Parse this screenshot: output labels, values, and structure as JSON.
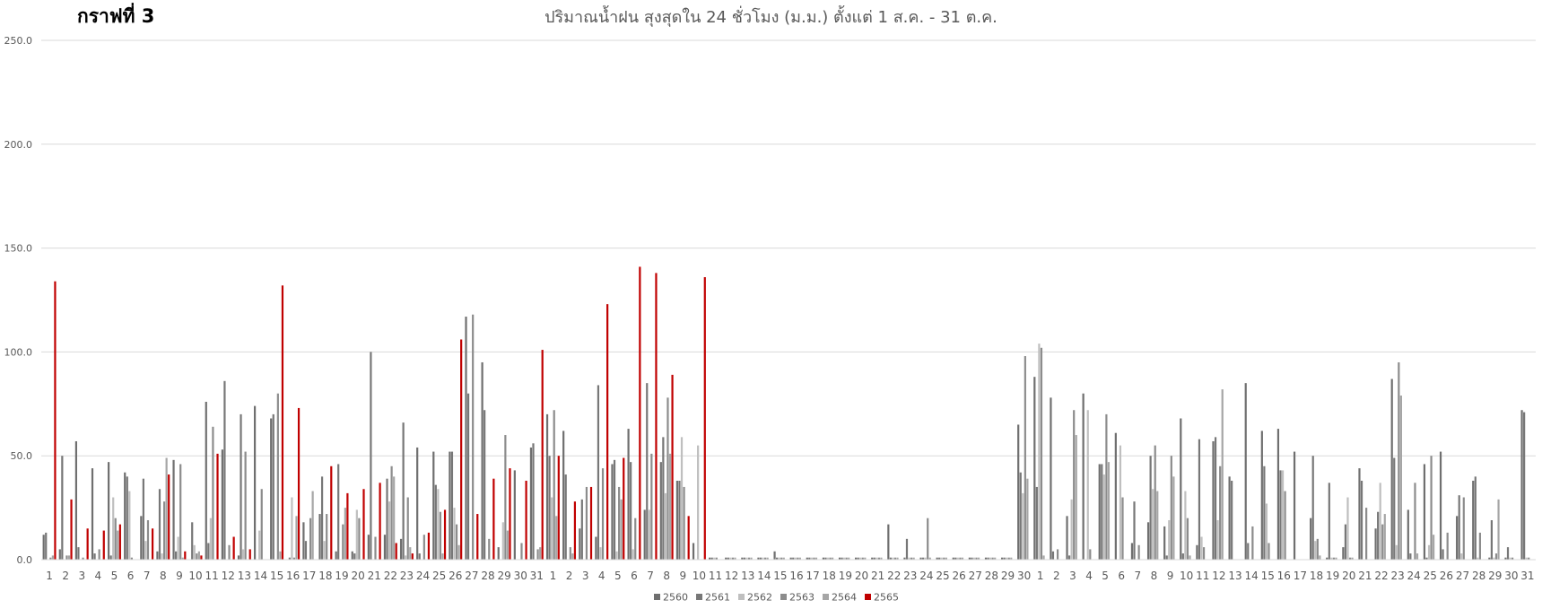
{
  "page": {
    "corner_title": "กราฟที่ 3"
  },
  "chart_data": {
    "type": "bar",
    "title": "ปริมาณน้ำฝน สุงสุดใน 24 ชั่วโมง (ม.ม.) ตั้งแต่ 1 ส.ค. - 31 ต.ค.",
    "xlabel": "",
    "ylabel": "",
    "ylim": [
      0,
      250
    ],
    "yticks": [
      "0.0",
      "50.0",
      "100.0",
      "150.0",
      "200.0",
      "250.0"
    ],
    "grid": true,
    "legend_position": "bottom",
    "categories": [
      "1",
      "2",
      "3",
      "4",
      "5",
      "6",
      "7",
      "8",
      "9",
      "10",
      "11",
      "12",
      "13",
      "14",
      "15",
      "16",
      "17",
      "18",
      "19",
      "20",
      "21",
      "22",
      "23",
      "24",
      "25",
      "26",
      "27",
      "28",
      "29",
      "30",
      "31",
      "1",
      "2",
      "3",
      "4",
      "5",
      "6",
      "7",
      "8",
      "9",
      "10",
      "11",
      "12",
      "13",
      "14",
      "15",
      "16",
      "17",
      "18",
      "19",
      "20",
      "21",
      "22",
      "23",
      "24",
      "25",
      "26",
      "27",
      "28",
      "29",
      "30",
      "1",
      "2",
      "3",
      "4",
      "5",
      "6",
      "7",
      "8",
      "9",
      "10",
      "11",
      "12",
      "13",
      "14",
      "15",
      "16",
      "17",
      "18",
      "19",
      "20",
      "21",
      "22",
      "23",
      "24",
      "25",
      "26",
      "27",
      "28",
      "29",
      "30",
      "31"
    ],
    "series": [
      {
        "name": "2560",
        "color": "#6f6f6f",
        "values": [
          12,
          5,
          57,
          44,
          47,
          42,
          21,
          4,
          48,
          0,
          76,
          53,
          2,
          74,
          68,
          0,
          18,
          22,
          4,
          4,
          12,
          12,
          10,
          54,
          52,
          52,
          117,
          95,
          6,
          43,
          54,
          70,
          62,
          15,
          11,
          46,
          63,
          24,
          47,
          38,
          8,
          1,
          1,
          1,
          1,
          4,
          1,
          1,
          1,
          1,
          1,
          1,
          17,
          1,
          1,
          1,
          1,
          1,
          1,
          1,
          65,
          88,
          78,
          21,
          80,
          46,
          61,
          8,
          18,
          16,
          68,
          7,
          57,
          40,
          85,
          62,
          63,
          52,
          20,
          1,
          6,
          44,
          15,
          87,
          24,
          46,
          52,
          21,
          38,
          1,
          1,
          72
        ]
      },
      {
        "name": "2561",
        "color": "#777777",
        "values": [
          13,
          50,
          6,
          3,
          2,
          40,
          39,
          34,
          4,
          18,
          8,
          86,
          70,
          0,
          70,
          1,
          9,
          40,
          46,
          3,
          100,
          39,
          66,
          3,
          36,
          52,
          80,
          72,
          0,
          0,
          56,
          50,
          41,
          29,
          84,
          48,
          47,
          85,
          59,
          38,
          0,
          1,
          1,
          1,
          1,
          1,
          1,
          1,
          1,
          1,
          1,
          1,
          1,
          10,
          1,
          1,
          1,
          1,
          1,
          1,
          42,
          35,
          4,
          2,
          0,
          46,
          0,
          28,
          50,
          2,
          3,
          58,
          59,
          38,
          8,
          45,
          43,
          0,
          50,
          37,
          17,
          38,
          23,
          49,
          3,
          1,
          5,
          31,
          40,
          19,
          6,
          71
        ]
      },
      {
        "name": "2562",
        "color": "#bfbfbf",
        "values": [
          0,
          0,
          0,
          0,
          30,
          33,
          9,
          3,
          11,
          7,
          20,
          0,
          5,
          14,
          0,
          30,
          0,
          9,
          0,
          24,
          0,
          28,
          2,
          0,
          34,
          25,
          0,
          0,
          18,
          0,
          0,
          30,
          0,
          0,
          6,
          4,
          5,
          24,
          32,
          59,
          55,
          1,
          1,
          1,
          1,
          1,
          1,
          1,
          1,
          1,
          1,
          1,
          1,
          1,
          1,
          1,
          1,
          1,
          1,
          1,
          32,
          104,
          0,
          29,
          72,
          41,
          55,
          0,
          34,
          19,
          33,
          11,
          19,
          0,
          0,
          27,
          43,
          0,
          9,
          1,
          30,
          0,
          37,
          7,
          0,
          7,
          0,
          3,
          1,
          1,
          1,
          1
        ]
      },
      {
        "name": "2563",
        "color": "#8c8c8c",
        "values": [
          1,
          2,
          1,
          5,
          20,
          1,
          19,
          28,
          46,
          3,
          64,
          7,
          52,
          34,
          80,
          1,
          20,
          22,
          17,
          20,
          11,
          45,
          30,
          12,
          23,
          17,
          118,
          10,
          60,
          8,
          5,
          72,
          6,
          35,
          44,
          35,
          20,
          51,
          78,
          35,
          0,
          1,
          1,
          1,
          1,
          1,
          1,
          1,
          1,
          1,
          1,
          1,
          1,
          1,
          20,
          1,
          1,
          1,
          1,
          1,
          98,
          102,
          5,
          72,
          5,
          70,
          30,
          7,
          55,
          50,
          20,
          6,
          45,
          0,
          16,
          8,
          33,
          0,
          10,
          1,
          1,
          25,
          17,
          95,
          37,
          50,
          13,
          30,
          13,
          3,
          1,
          1
        ]
      },
      {
        "name": "2564",
        "color": "#a6a6a6",
        "values": [
          2,
          2,
          0,
          0,
          14,
          0,
          0,
          49,
          1,
          4,
          0,
          0,
          0,
          0,
          4,
          21,
          33,
          0,
          25,
          0,
          0,
          40,
          6,
          0,
          3,
          7,
          0,
          0,
          14,
          0,
          6,
          21,
          3,
          0,
          0,
          29,
          0,
          0,
          51,
          0,
          0,
          0,
          1,
          1,
          1,
          1,
          1,
          1,
          1,
          1,
          1,
          1,
          1,
          1,
          1,
          1,
          1,
          1,
          1,
          1,
          39,
          2,
          0,
          60,
          0,
          47,
          0,
          0,
          33,
          40,
          2,
          0,
          82,
          0,
          0,
          0,
          0,
          0,
          2,
          1,
          1,
          0,
          22,
          79,
          3,
          12,
          0,
          0,
          0,
          29,
          0,
          0
        ]
      },
      {
        "name": "2565",
        "color": "#c00000",
        "values": [
          134,
          29,
          15,
          14,
          17,
          0,
          15,
          41,
          4,
          2,
          51,
          11,
          5,
          0,
          132,
          73,
          0,
          45,
          32,
          34,
          37,
          8,
          3,
          13,
          24,
          106,
          22,
          39,
          44,
          38,
          101,
          50,
          28,
          35,
          123,
          49,
          141,
          138,
          89,
          21,
          136,
          0,
          0,
          0,
          0,
          0,
          0,
          0,
          0,
          0,
          0,
          0,
          0,
          0,
          0,
          0,
          0,
          0,
          0,
          0,
          0,
          0,
          0,
          0,
          0,
          0,
          0,
          0,
          0,
          0,
          0,
          0,
          0,
          0,
          0,
          0,
          0,
          0,
          0,
          0,
          0,
          0,
          0,
          0,
          0,
          0,
          0,
          0,
          0,
          0,
          0,
          0
        ]
      }
    ]
  }
}
